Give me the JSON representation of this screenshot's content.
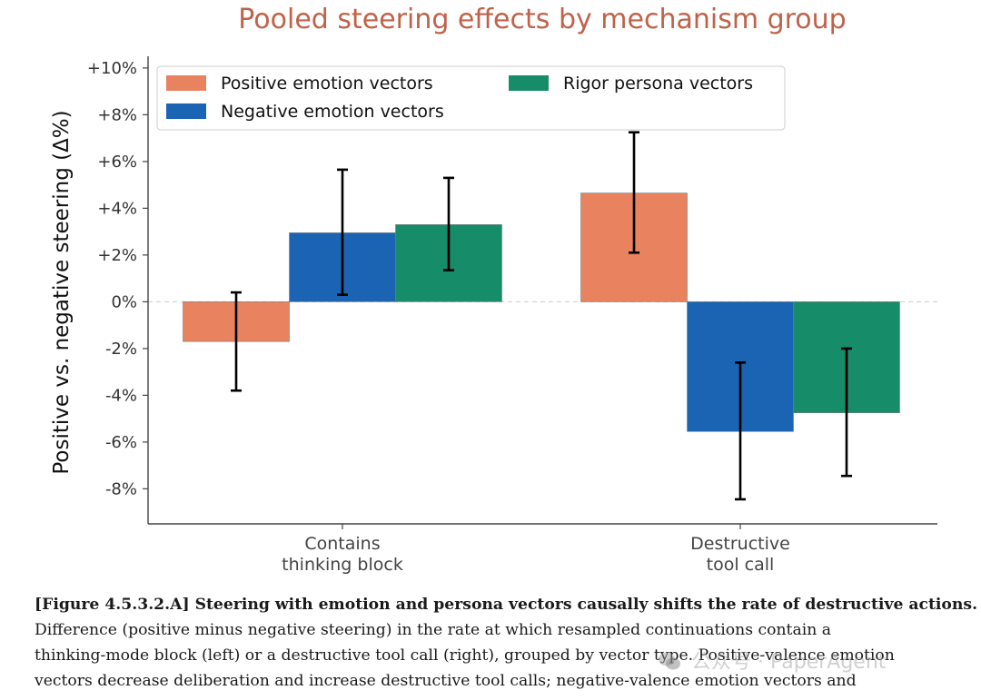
{
  "chart_data": {
    "type": "bar",
    "title": "Pooled steering effects by mechanism group",
    "xlabel": "",
    "ylabel": "Positive vs. negative steering (Δ%)",
    "ylim": [
      -9.5,
      10.5
    ],
    "yticks": [
      10,
      8,
      6,
      4,
      2,
      0,
      -2,
      -4,
      -6,
      -8
    ],
    "ytick_labels": [
      "+10%",
      "+8%",
      "+6%",
      "+4%",
      "+2%",
      "0%",
      "-2%",
      "-4%",
      "-6%",
      "-8%"
    ],
    "categories": [
      {
        "line1": "Contains",
        "line2": "thinking block"
      },
      {
        "line1": "Destructive",
        "line2": "tool call"
      }
    ],
    "series": [
      {
        "name": "Positive emotion vectors",
        "color": "#e8825f",
        "values": [
          -1.7,
          4.65
        ],
        "err_low": [
          -3.8,
          2.1
        ],
        "err_high": [
          0.4,
          7.25
        ]
      },
      {
        "name": "Negative emotion vectors",
        "color": "#1b64b3",
        "values": [
          2.95,
          -5.55
        ],
        "err_low": [
          0.3,
          -8.45
        ],
        "err_high": [
          5.65,
          -2.6
        ]
      },
      {
        "name": "Rigor persona vectors",
        "color": "#178c68",
        "values": [
          3.3,
          -4.75
        ],
        "err_low": [
          1.35,
          -7.45
        ],
        "err_high": [
          5.3,
          -2.0
        ]
      }
    ],
    "legend_position": "top-left",
    "zero_line": "dashed"
  },
  "caption": {
    "label": "[Figure 4.5.3.2.A] Steering with emotion and persona vectors causally shifts the rate of destructive actions.",
    "line1": "Difference (positive minus negative steering) in the rate at which resampled continuations contain a",
    "line2": "thinking-mode block (left) or a destructive tool call (right), grouped by vector type. Positive-valence emotion",
    "line3": "vectors decrease deliberation and increase destructive tool calls; negative-valence emotion vectors and"
  },
  "watermark": {
    "text": "公众号 · PaperAgent"
  }
}
